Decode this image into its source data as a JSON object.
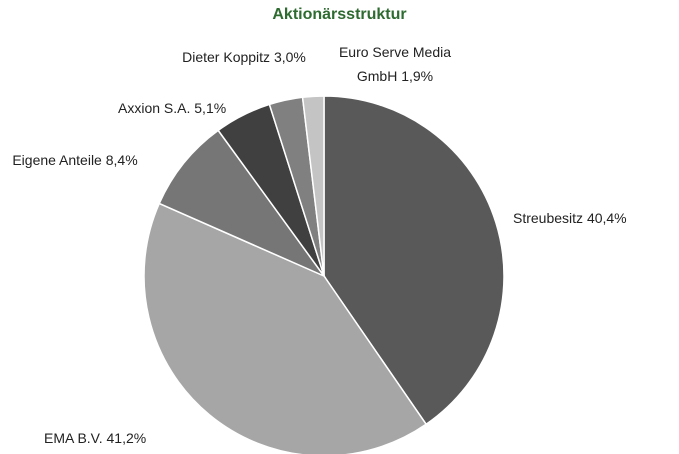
{
  "chart_data": {
    "type": "pie",
    "title": "Aktionärsstruktur",
    "categories": [
      "Streubesitz",
      "EMA B.V.",
      "Eigene Anteile",
      "Axxion S.A.",
      "Dieter Koppitz",
      "Euro Serve Media GmbH"
    ],
    "values": [
      40.4,
      41.2,
      8.4,
      5.1,
      3.0,
      1.9
    ],
    "value_labels": [
      "40,4%",
      "41,2%",
      "8,4%",
      "5,1%",
      "3,0%",
      "1,9%"
    ],
    "colors": [
      "#595959",
      "#a6a6a6",
      "#767676",
      "#404040",
      "#808080",
      "#c4c4c4"
    ],
    "title_color": "#2e6b30"
  }
}
